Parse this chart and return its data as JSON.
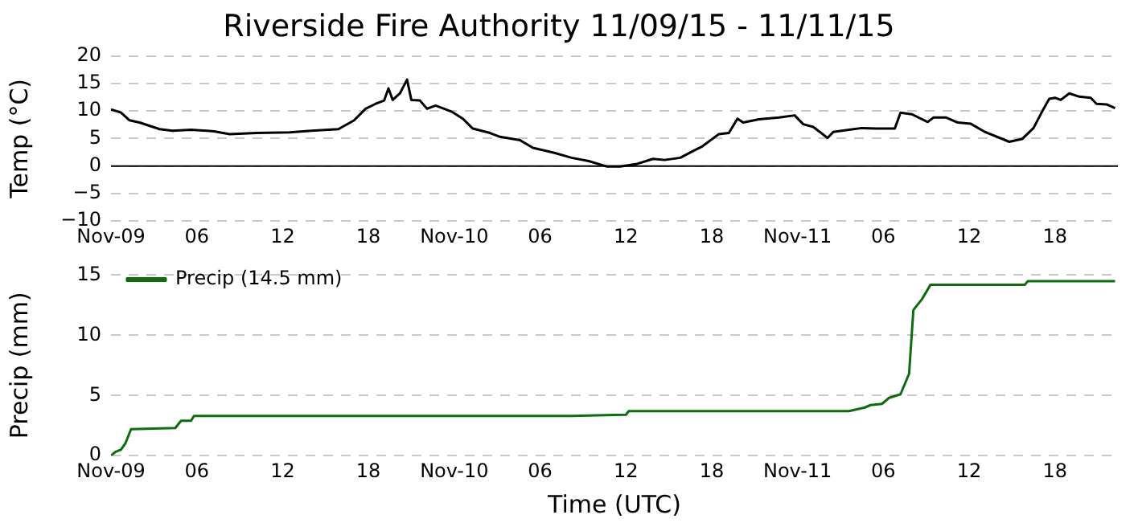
{
  "chart_data": [
    {
      "type": "line",
      "title": "Riverside Fire Authority 11/09/15 - 11/11/15",
      "ylabel": "Temp (°C)",
      "marker": "none",
      "grid": "y",
      "legend": false,
      "xlim": [
        "--11-09T00:00",
        "--11-11T22:24"
      ],
      "xticks": [
        {
          "value": "--11-09T00:00",
          "label": "Nov-09"
        },
        {
          "value": "--11-09T06:00",
          "label": "06"
        },
        {
          "value": "--11-09T12:00",
          "label": "12"
        },
        {
          "value": "--11-09T18:00",
          "label": "18"
        },
        {
          "value": "--11-10T00:00",
          "label": "Nov-10"
        },
        {
          "value": "--11-10T06:00",
          "label": "06"
        },
        {
          "value": "--11-10T12:00",
          "label": "12"
        },
        {
          "value": "--11-10T18:00",
          "label": "18"
        },
        {
          "value": "--11-11T00:00",
          "label": "Nov-11"
        },
        {
          "value": "--11-11T06:00",
          "label": "06"
        },
        {
          "value": "--11-11T12:00",
          "label": "12"
        },
        {
          "value": "--11-11T18:00",
          "label": "18"
        }
      ],
      "ylim": [
        -10,
        20
      ],
      "yticks": [
        {
          "value": -10,
          "label": "−10"
        },
        {
          "value": -5,
          "label": "−5"
        },
        0,
        5,
        10,
        15,
        20
      ],
      "ref_lines": [
        {
          "axis": "y",
          "value": 0,
          "color": "#000000"
        }
      ],
      "series": [
        {
          "color": "#000000",
          "x": [
            "--11-09T00:00",
            "--11-09T00:42",
            "--11-09T01:18",
            "--11-09T02:00",
            "--11-09T03:24",
            "--11-09T04:18",
            "--11-09T05:36",
            "--11-09T07:12",
            "--11-09T08:18",
            "--11-09T10:12",
            "--11-09T12:30",
            "--11-09T14:00",
            "--11-09T15:54",
            "--11-09T17:00",
            "--11-09T17:48",
            "--11-09T18:30",
            "--11-09T19:06",
            "--11-09T19:24",
            "--11-09T19:42",
            "--11-09T20:12",
            "--11-09T20:42",
            "--11-09T21:00",
            "--11-09T21:36",
            "--11-09T22:06",
            "--11-09T22:42",
            "--11-09T23:48",
            "--11-10T00:36",
            "--11-10T01:18",
            "--11-10T02:30",
            "--11-10T03:12",
            "--11-10T04:36",
            "--11-10T05:30",
            "--11-10T07:00",
            "--11-10T08:12",
            "--11-10T09:24",
            "--11-10T10:42",
            "--11-10T11:36",
            "--11-10T12:48",
            "--11-10T13:54",
            "--11-10T14:42",
            "--11-10T15:48",
            "--11-10T16:36",
            "--11-10T17:18",
            "--11-10T18:30",
            "--11-10T19:12",
            "--11-10T19:48",
            "--11-10T20:12",
            "--11-10T21:18",
            "--11-10T22:42",
            "--11-10T23:48",
            "--11-11T00:24",
            "--11-11T01:06",
            "--11-11T02:06",
            "--11-11T02:30",
            "--11-11T03:36",
            "--11-11T04:30",
            "--11-11T05:30",
            "--11-11T06:48",
            "--11-11T07:12",
            "--11-11T08:00",
            "--11-11T09:06",
            "--11-11T09:30",
            "--11-11T10:24",
            "--11-11T11:12",
            "--11-11T12:06",
            "--11-11T13:06",
            "--11-11T14:48",
            "--11-11T15:42",
            "--11-11T16:30",
            "--11-11T17:06",
            "--11-11T17:36",
            "--11-11T18:00",
            "--11-11T18:24",
            "--11-11T19:00",
            "--11-11T19:42",
            "--11-11T20:30",
            "--11-11T20:54",
            "--11-11T21:36",
            "--11-11T22:12"
          ],
          "values": [
            10.3,
            9.7,
            8.3,
            7.9,
            6.7,
            6.4,
            6.6,
            6.3,
            5.8,
            6.0,
            6.1,
            6.4,
            6.7,
            8.3,
            10.4,
            11.3,
            11.9,
            14.1,
            12.0,
            13.2,
            15.7,
            12.0,
            11.9,
            10.4,
            11.0,
            9.9,
            8.6,
            6.8,
            6.0,
            5.3,
            4.7,
            3.3,
            2.4,
            1.5,
            0.9,
            -0.1,
            -0.1,
            0.4,
            1.3,
            1.1,
            1.5,
            2.6,
            3.5,
            5.8,
            6.0,
            8.6,
            7.9,
            8.5,
            8.8,
            9.2,
            7.6,
            7.1,
            5.1,
            6.2,
            6.6,
            6.9,
            6.8,
            6.8,
            9.7,
            9.4,
            8.0,
            8.8,
            8.8,
            7.9,
            7.7,
            6.2,
            4.4,
            4.9,
            6.9,
            9.9,
            12.2,
            12.4,
            12.0,
            13.2,
            12.6,
            12.4,
            11.3,
            11.2,
            10.5
          ]
        }
      ]
    },
    {
      "type": "line",
      "xlabel": "Time (UTC)",
      "ylabel": "Precip (mm)",
      "marker": "none",
      "grid": "y",
      "legend": "top left",
      "xlim": [
        "--11-09T00:00",
        "--11-11T22:24"
      ],
      "xticks": [
        {
          "value": "--11-09T00:00",
          "label": "Nov-09"
        },
        {
          "value": "--11-09T06:00",
          "label": "06"
        },
        {
          "value": "--11-09T12:00",
          "label": "12"
        },
        {
          "value": "--11-09T18:00",
          "label": "18"
        },
        {
          "value": "--11-10T00:00",
          "label": "Nov-10"
        },
        {
          "value": "--11-10T06:00",
          "label": "06"
        },
        {
          "value": "--11-10T12:00",
          "label": "12"
        },
        {
          "value": "--11-10T18:00",
          "label": "18"
        },
        {
          "value": "--11-11T00:00",
          "label": "Nov-11"
        },
        {
          "value": "--11-11T06:00",
          "label": "06"
        },
        {
          "value": "--11-11T12:00",
          "label": "12"
        },
        {
          "value": "--11-11T18:00",
          "label": "18"
        }
      ],
      "ylim": [
        0,
        15
      ],
      "yticks": [
        0,
        5,
        10,
        15
      ],
      "series": [
        {
          "name": "Precip (14.5 mm)",
          "color": "#0b6e0b",
          "x": [
            "--11-09T00:00",
            "--11-09T00:18",
            "--11-09T00:42",
            "--11-09T01:00",
            "--11-09T01:24",
            "--11-09T04:30",
            "--11-09T04:54",
            "--11-09T05:36",
            "--11-09T05:48",
            "--11-10T08:12",
            "--11-10T12:00",
            "--11-10T12:12",
            "--11-11T03:36",
            "--11-11T04:42",
            "--11-11T05:06",
            "--11-11T05:54",
            "--11-11T06:24",
            "--11-11T07:12",
            "--11-11T07:48",
            "--11-11T08:06",
            "--11-11T08:42",
            "--11-11T09:18",
            "--11-11T15:54",
            "--11-11T16:06",
            "--11-11T22:12"
          ],
          "values": [
            0,
            0.3,
            0.5,
            1.0,
            2.2,
            2.3,
            2.9,
            2.9,
            3.3,
            3.3,
            3.4,
            3.7,
            3.7,
            4.0,
            4.2,
            4.3,
            4.8,
            5.1,
            6.8,
            12.1,
            13.0,
            14.2,
            14.2,
            14.5,
            14.5
          ]
        }
      ]
    }
  ]
}
